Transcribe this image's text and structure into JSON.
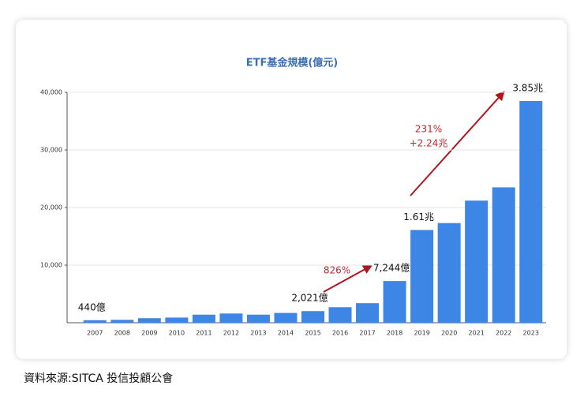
{
  "chart_data": {
    "type": "bar",
    "title": "ETF基金規模(億元)",
    "source": "資料來源:SITCA 投信投顧公會",
    "categories": [
      "2007",
      "2008",
      "2009",
      "2010",
      "2011",
      "2012",
      "2013",
      "2014",
      "2015",
      "2016",
      "2017",
      "2018",
      "2019",
      "2020",
      "2021",
      "2022",
      "2023"
    ],
    "values": [
      440,
      500,
      790,
      900,
      1400,
      1600,
      1400,
      1700,
      2021,
      2700,
      3400,
      7244,
      16100,
      17300,
      21200,
      23500,
      38500
    ],
    "value_labels": [
      "440億",
      null,
      null,
      null,
      null,
      null,
      null,
      null,
      "2,021億",
      null,
      null,
      "7,244億",
      "1.61兆",
      null,
      null,
      null,
      "3.85兆"
    ],
    "annotations": [
      "826%",
      "231%",
      "+2.24兆"
    ],
    "color": "#3e86e6",
    "ylim": [
      0,
      40000
    ],
    "yticks": [
      {
        "value": 10000,
        "label": "10,000"
      },
      {
        "value": 20000,
        "label": "20,000"
      },
      {
        "value": 30000,
        "label": "30,000"
      },
      {
        "value": 40000,
        "label": "40,000"
      }
    ],
    "grid": true
  }
}
